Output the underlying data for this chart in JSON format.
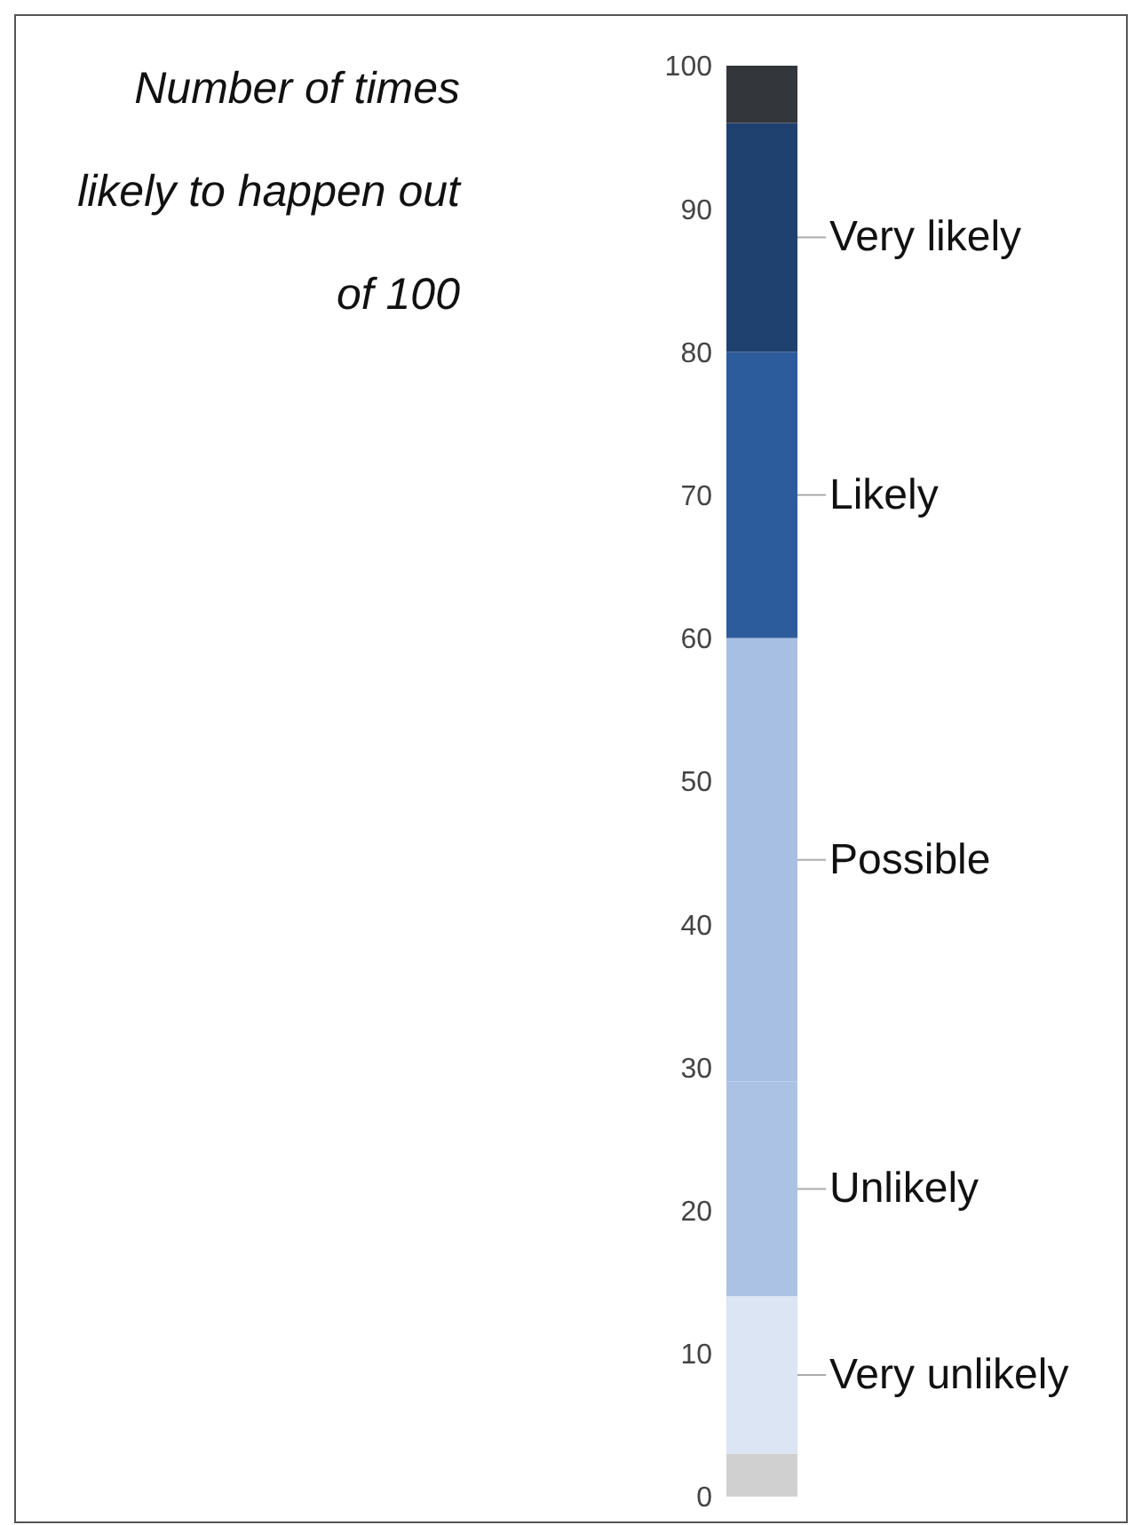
{
  "chart_data": {
    "type": "bar",
    "title": "Number of times likely to happen out of 100",
    "categories": [
      null
    ],
    "stacked": true,
    "ylim": [
      0,
      100
    ],
    "yticks": [
      0,
      10,
      20,
      30,
      40,
      50,
      60,
      70,
      80,
      90,
      100
    ],
    "grid": false,
    "legend": false,
    "series": [
      {
        "color": "#d0d0d0",
        "values": [
          3
        ]
      },
      {
        "name": "Very unlikely",
        "color": "#dbe5f3",
        "values": [
          11
        ]
      },
      {
        "name": "Unlikely",
        "color": "#abc2e4",
        "values": [
          15
        ]
      },
      {
        "name": "Possible",
        "color": "#a7bfe3",
        "values": [
          31
        ]
      },
      {
        "name": "Likely",
        "color": "#2d5c9d",
        "values": [
          20
        ]
      },
      {
        "name": "Very likely",
        "color": "#1f416f",
        "values": [
          16
        ]
      },
      {
        "color": "#33373b",
        "values": [
          4
        ]
      }
    ]
  }
}
